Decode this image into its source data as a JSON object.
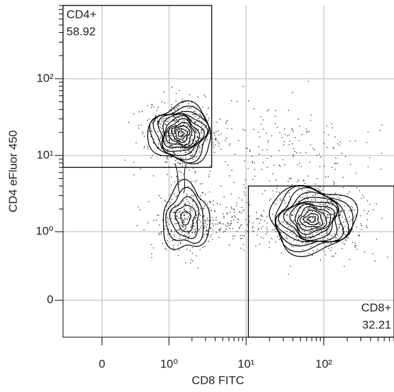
{
  "chart_data": {
    "type": "contour",
    "x_label": "CD8 FITC",
    "y_label": "CD4 eFluor 450",
    "scale": "biexponential",
    "xlim": [
      -0.4,
      800
    ],
    "ylim": [
      -0.35,
      900
    ],
    "xticks": [
      0,
      {
        "value": 1,
        "label": "10⁰"
      },
      {
        "value": 10,
        "label": "10¹"
      },
      {
        "value": 100,
        "label": "10²"
      }
    ],
    "yticks": [
      0,
      {
        "value": 1,
        "label": "10⁰"
      },
      {
        "value": 10,
        "label": "10¹"
      },
      {
        "value": 100,
        "label": "10²"
      }
    ],
    "grid": true,
    "gates": [
      {
        "name": "CD4+",
        "percent": 58.92,
        "xrange": [
          -0.4,
          3.6
        ],
        "yrange": [
          7.0,
          900
        ],
        "label_corner": "top-left"
      },
      {
        "name": "CD8+",
        "percent": 32.21,
        "xrange": [
          10.7,
          800
        ],
        "yrange": [
          -0.35,
          4.0
        ],
        "label_corner": "bottom-right"
      }
    ]
  }
}
